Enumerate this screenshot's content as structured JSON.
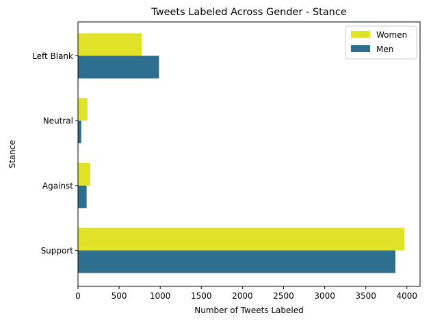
{
  "chart_data": {
    "type": "bar",
    "orientation": "horizontal",
    "title": "Tweets Labeled Across Gender - Stance",
    "xlabel": "Number of Tweets Labeled",
    "ylabel": "Stance",
    "categories": [
      "Left Blank",
      "Neutral",
      "Against",
      "Support"
    ],
    "series": [
      {
        "name": "Women",
        "color": "#e1e328",
        "values": [
          775,
          115,
          150,
          3970
        ]
      },
      {
        "name": "Men",
        "color": "#2e6e8e",
        "values": [
          985,
          40,
          105,
          3860
        ]
      }
    ],
    "xlim": [
      0,
      4160
    ],
    "xticks": [
      0,
      500,
      1000,
      1500,
      2000,
      2500,
      3000,
      3500,
      4000
    ],
    "legend_position": "top-right",
    "grid": false
  }
}
